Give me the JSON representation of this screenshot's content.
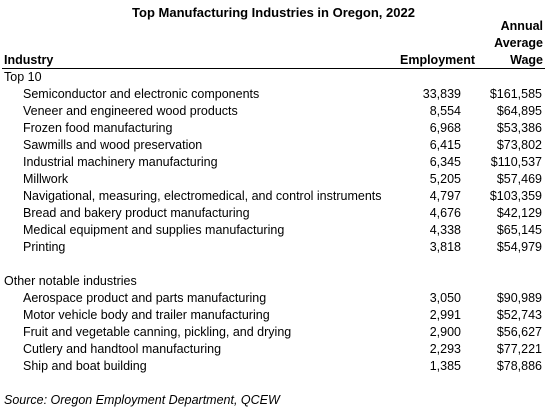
{
  "title": "Top Manufacturing Industries in Oregon, 2022",
  "headers": {
    "industry": "Industry",
    "employment": "Employment",
    "wage_line1": "Annual",
    "wage_line2": "Average",
    "wage_line3": "Wage"
  },
  "sections": [
    {
      "label": "Top 10",
      "rows": [
        {
          "industry": "Semiconductor and electronic components",
          "employment": "33,839",
          "wage": "$161,585"
        },
        {
          "industry": "Veneer and engineered wood products",
          "employment": "8,554",
          "wage": "$64,895"
        },
        {
          "industry": "Frozen food manufacturing",
          "employment": "6,968",
          "wage": "$53,386"
        },
        {
          "industry": "Sawmills and wood preservation",
          "employment": "6,415",
          "wage": "$73,802"
        },
        {
          "industry": "Industrial machinery manufacturing",
          "employment": "6,345",
          "wage": "$110,537"
        },
        {
          "industry": "Millwork",
          "employment": "5,205",
          "wage": "$57,469"
        },
        {
          "industry": "Navigational, measuring, electromedical, and control instruments",
          "employment": "4,797",
          "wage": "$103,359"
        },
        {
          "industry": "Bread and bakery product manufacturing",
          "employment": "4,676",
          "wage": "$42,129"
        },
        {
          "industry": "Medical equipment and supplies manufacturing",
          "employment": "4,338",
          "wage": "$65,145"
        },
        {
          "industry": "Printing",
          "employment": "3,818",
          "wage": "$54,979"
        }
      ]
    },
    {
      "label": "Other notable industries",
      "rows": [
        {
          "industry": "Aerospace product and parts manufacturing",
          "employment": "3,050",
          "wage": "$90,989"
        },
        {
          "industry": "Motor vehicle body and trailer manufacturing",
          "employment": "2,991",
          "wage": "$52,743"
        },
        {
          "industry": "Fruit and vegetable canning, pickling, and drying",
          "employment": "2,900",
          "wage": "$56,627"
        },
        {
          "industry": "Cutlery and handtool manufacturing",
          "employment": "2,293",
          "wage": "$77,221"
        },
        {
          "industry": "Ship and boat building",
          "employment": "1,385",
          "wage": "$78,886"
        }
      ]
    }
  ],
  "source": "Source: Oregon Employment Department, QCEW"
}
